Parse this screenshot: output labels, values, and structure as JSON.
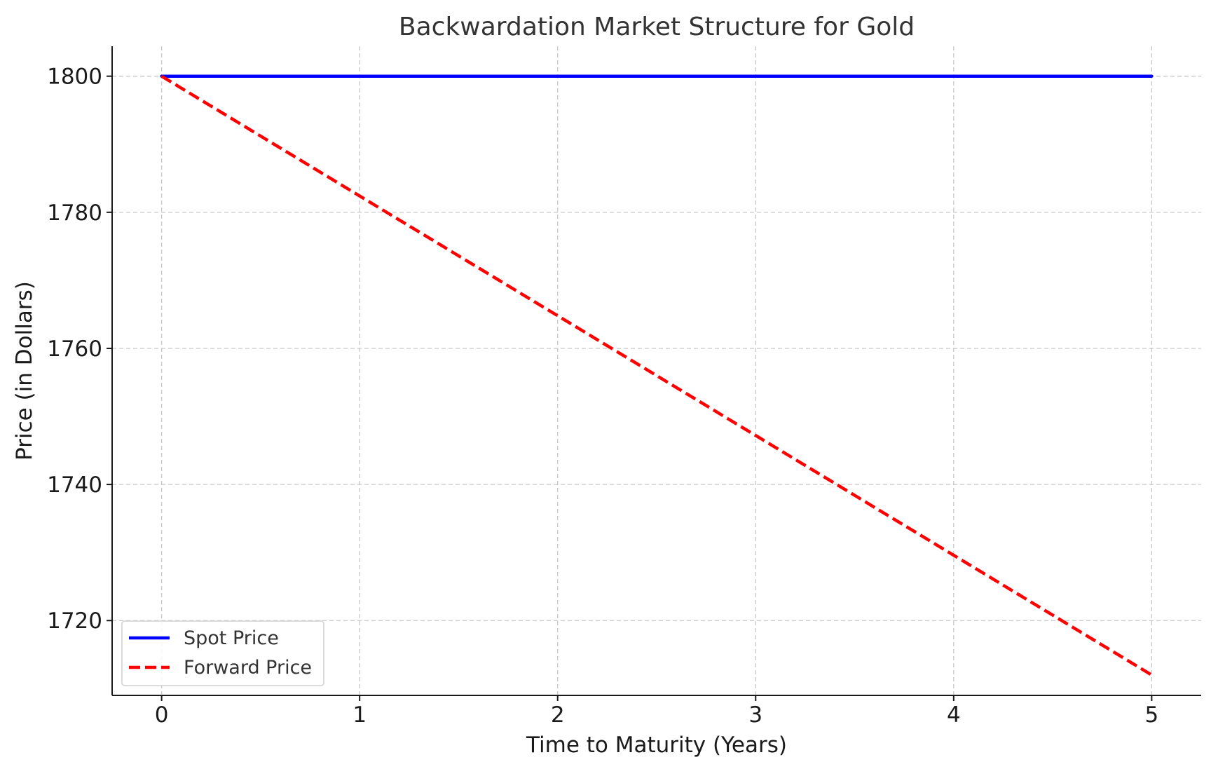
{
  "chart_data": {
    "type": "line",
    "title": "Backwardation Market Structure for Gold",
    "xlabel": "Time to Maturity (Years)",
    "ylabel": "Price (in Dollars)",
    "xlim": [
      -0.25,
      5.25
    ],
    "ylim": [
      1709,
      1804.4
    ],
    "xticks": [
      0,
      1,
      2,
      3,
      4,
      5
    ],
    "xtick_labels": [
      "0",
      "1",
      "2",
      "3",
      "4",
      "5"
    ],
    "yticks": [
      1720,
      1740,
      1760,
      1780,
      1800
    ],
    "ytick_labels": [
      "1720",
      "1740",
      "1760",
      "1780",
      "1800"
    ],
    "grid": true,
    "legend_position": "lower-left",
    "series": [
      {
        "name": "Spot Price",
        "color": "#0000ff",
        "line_style": "solid",
        "x": [
          0,
          1,
          2,
          3,
          4,
          5
        ],
        "y": [
          1800,
          1800,
          1800,
          1800,
          1800,
          1800
        ]
      },
      {
        "name": "Forward Price",
        "color": "#ff0000",
        "line_style": "dashed",
        "x": [
          0,
          1,
          2,
          3,
          4,
          5
        ],
        "y": [
          1800,
          1782.4,
          1764.8,
          1747.2,
          1729.6,
          1712
        ]
      }
    ]
  }
}
